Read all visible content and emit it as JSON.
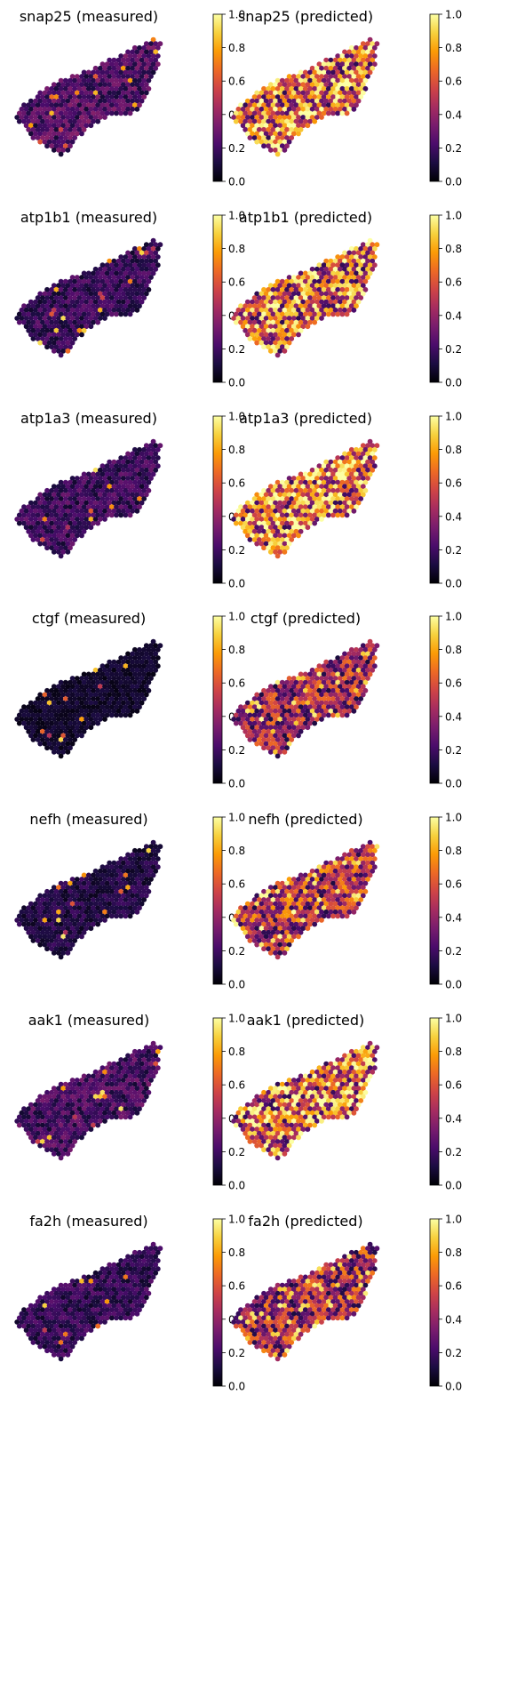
{
  "colorbar": {
    "colormap": "inferno",
    "range": [
      0.0,
      1.0
    ],
    "ticks": [
      "0.0",
      "0.2",
      "0.4",
      "0.6",
      "0.8",
      "1.0"
    ]
  },
  "colors": {
    "inferno_stops": [
      "#000004",
      "#1b0c41",
      "#4a0c6b",
      "#781c6d",
      "#a52c60",
      "#cf4446",
      "#ed6925",
      "#fb9b06",
      "#f7d13d",
      "#fcffa4"
    ]
  },
  "chart_data": [
    {
      "type": "scatter",
      "title": "snap25 (measured)",
      "gene": "snap25",
      "kind": "measured",
      "mean": 0.22
    },
    {
      "type": "scatter",
      "title": "snap25 (predicted)",
      "gene": "snap25",
      "kind": "predicted",
      "mean": 0.62
    },
    {
      "type": "scatter",
      "title": "atp1b1 (measured)",
      "gene": "atp1b1",
      "kind": "measured",
      "mean": 0.17
    },
    {
      "type": "scatter",
      "title": "atp1b1 (predicted)",
      "gene": "atp1b1",
      "kind": "predicted",
      "mean": 0.6
    },
    {
      "type": "scatter",
      "title": "atp1a3 (measured)",
      "gene": "atp1a3",
      "kind": "measured",
      "mean": 0.18
    },
    {
      "type": "scatter",
      "title": "atp1a3 (predicted)",
      "gene": "atp1a3",
      "kind": "predicted",
      "mean": 0.64
    },
    {
      "type": "scatter",
      "title": "ctgf (measured)",
      "gene": "ctgf",
      "kind": "measured",
      "mean": 0.07
    },
    {
      "type": "scatter",
      "title": "ctgf (predicted)",
      "gene": "ctgf",
      "kind": "predicted",
      "mean": 0.4
    },
    {
      "type": "scatter",
      "title": "nefh (measured)",
      "gene": "nefh",
      "kind": "measured",
      "mean": 0.12
    },
    {
      "type": "scatter",
      "title": "nefh (predicted)",
      "gene": "nefh",
      "kind": "predicted",
      "mean": 0.45
    },
    {
      "type": "scatter",
      "title": "aak1 (measured)",
      "gene": "aak1",
      "kind": "measured",
      "mean": 0.2
    },
    {
      "type": "scatter",
      "title": "aak1 (predicted)",
      "gene": "aak1",
      "kind": "predicted",
      "mean": 0.62
    },
    {
      "type": "scatter",
      "title": "fa2h (measured)",
      "gene": "fa2h",
      "kind": "measured",
      "mean": 0.16
    },
    {
      "type": "scatter",
      "title": "fa2h (predicted)",
      "gene": "fa2h",
      "kind": "predicted",
      "mean": 0.42
    }
  ]
}
